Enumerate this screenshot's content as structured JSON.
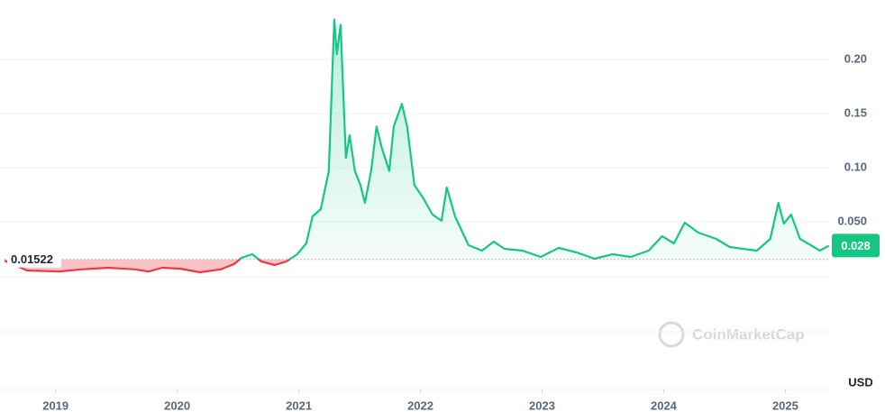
{
  "chart_data": {
    "type": "line",
    "x": [
      2018.58,
      2018.765,
      2019.032,
      2019.21,
      2019.432,
      2019.654,
      2019.765,
      2019.876,
      2020.024,
      2020.187,
      2020.357,
      2020.469,
      2020.528,
      2020.617,
      2020.691,
      2020.802,
      2020.898,
      2020.987,
      2021.061,
      2021.113,
      2021.18,
      2021.246,
      2021.291,
      2021.313,
      2021.343,
      2021.387,
      2021.417,
      2021.461,
      2021.506,
      2021.543,
      2021.594,
      2021.639,
      2021.684,
      2021.743,
      2021.78,
      2021.847,
      2021.891,
      2021.95,
      2022.024,
      2022.099,
      2022.173,
      2022.217,
      2022.284,
      2022.336,
      2022.395,
      2022.506,
      2022.602,
      2022.691,
      2022.839,
      2022.987,
      2023.136,
      2023.284,
      2023.432,
      2023.58,
      2023.728,
      2023.876,
      2023.987,
      2024.084,
      2024.173,
      2024.284,
      2024.432,
      2024.543,
      2024.654,
      2024.765,
      2024.876,
      2024.943,
      2024.987,
      2025.047,
      2025.121,
      2025.21,
      2025.284,
      2025.358
    ],
    "values": [
      0.014,
      0.005,
      0.004,
      0.006,
      0.0075,
      0.006,
      0.004,
      0.0075,
      0.0067,
      0.0033,
      0.006,
      0.011,
      0.0167,
      0.02,
      0.0133,
      0.01,
      0.0133,
      0.02,
      0.03,
      0.055,
      0.0617,
      0.0967,
      0.237,
      0.205,
      0.232,
      0.109,
      0.13,
      0.097,
      0.084,
      0.0675,
      0.097,
      0.138,
      0.1175,
      0.097,
      0.138,
      0.159,
      0.138,
      0.084,
      0.0717,
      0.0567,
      0.051,
      0.0817,
      0.055,
      0.0425,
      0.0283,
      0.0233,
      0.0317,
      0.025,
      0.0233,
      0.0175,
      0.0258,
      0.0217,
      0.0158,
      0.02,
      0.0175,
      0.0233,
      0.0367,
      0.03,
      0.0492,
      0.04,
      0.0342,
      0.0267,
      0.025,
      0.0233,
      0.0342,
      0.0675,
      0.0483,
      0.0567,
      0.0342,
      0.0283,
      0.0233,
      0.028
    ],
    "xlim": [
      2018.58,
      2025.36
    ],
    "xticks": [
      2019,
      2020,
      2021,
      2022,
      2023,
      2024,
      2025
    ],
    "ylim": [
      0,
      0.25
    ],
    "yticks": [
      {
        "value": 0.05,
        "label": "0.050"
      },
      {
        "value": 0.1,
        "label": "0.10"
      },
      0.15,
      {
        "value": 0.2,
        "label": "0.20"
      }
    ],
    "grid": true,
    "baseline": 0.01522,
    "current_value": 0.028,
    "up_color": "#16c784",
    "down_color": "#ea3943",
    "currency": "USD",
    "watermark": "CoinMarketCap"
  }
}
